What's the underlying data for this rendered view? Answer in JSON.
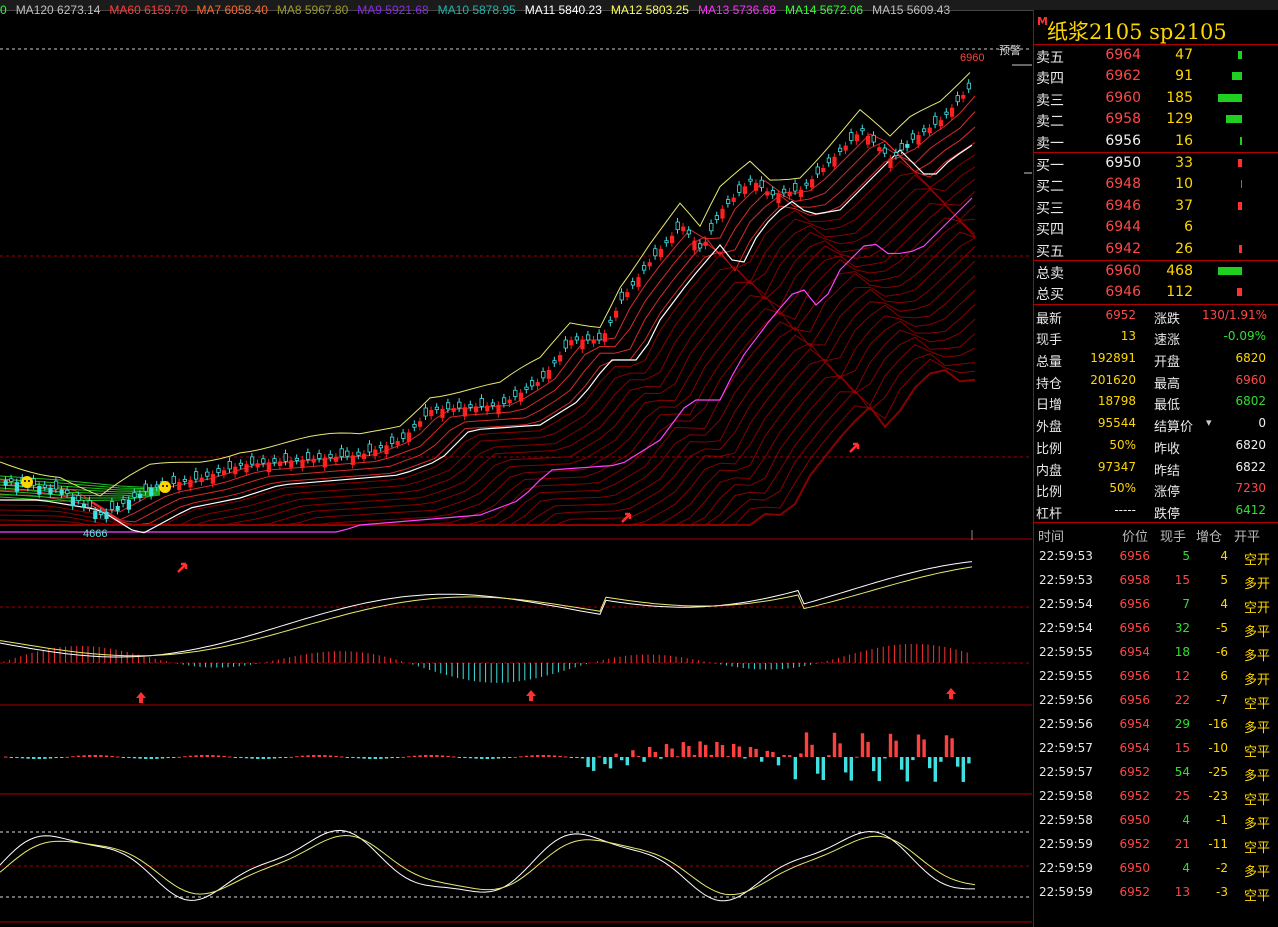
{
  "ma_legend": [
    {
      "label": "0",
      "color": "#2cff2c"
    },
    {
      "label": "MA120 6273.14",
      "color": "#bfbfbf"
    },
    {
      "label": "MA60 6159.70",
      "color": "#ff3b3b"
    },
    {
      "label": "MA7 6058.40",
      "color": "#ff6a2a"
    },
    {
      "label": "MA8 5967.80",
      "color": "#9b9b2a"
    },
    {
      "label": "MA9 5921.68",
      "color": "#8a2be2"
    },
    {
      "label": "MA10 5878.95",
      "color": "#20b2aa"
    },
    {
      "label": "MA11 5840.23",
      "color": "#ffffff"
    },
    {
      "label": "MA12 5803.25",
      "color": "#ffff55"
    },
    {
      "label": "MA13 5736.68",
      "color": "#ff2cff"
    },
    {
      "label": "MA14 5672.06",
      "color": "#2cff2c"
    },
    {
      "label": "MA15 5609.43",
      "color": "#bfbfbf"
    }
  ],
  "chart": {
    "high_label": "6960",
    "low_label": "4666",
    "warn_label": "预警"
  },
  "panel": {
    "m_mark": "M",
    "title": "纸浆2105  sp2105",
    "asks": [
      {
        "label": "卖五",
        "price": "6964",
        "vol": "47",
        "bar": 4
      },
      {
        "label": "卖四",
        "price": "6962",
        "vol": "91",
        "bar": 10
      },
      {
        "label": "卖三",
        "price": "6960",
        "vol": "185",
        "bar": 24
      },
      {
        "label": "卖二",
        "price": "6958",
        "vol": "129",
        "bar": 16
      },
      {
        "label": "卖一",
        "price": "6956",
        "vol": "16",
        "bar": 2
      }
    ],
    "bids": [
      {
        "label": "买一",
        "price": "6950",
        "vol": "33",
        "bar": 4
      },
      {
        "label": "买二",
        "price": "6948",
        "vol": "10",
        "bar": 1
      },
      {
        "label": "买三",
        "price": "6946",
        "vol": "37",
        "bar": 4
      },
      {
        "label": "买四",
        "price": "6944",
        "vol": "6",
        "bar": 0
      },
      {
        "label": "买五",
        "price": "6942",
        "vol": "26",
        "bar": 3
      }
    ],
    "totals": [
      {
        "label": "总卖",
        "price": "6960",
        "vol": "468",
        "bar": 24,
        "color": "green"
      },
      {
        "label": "总买",
        "price": "6946",
        "vol": "112",
        "bar": 5,
        "color": "red"
      }
    ],
    "stats": [
      {
        "l1": "最新",
        "v1": "6952",
        "c1": "red",
        "l2": "涨跌",
        "v2": "130/1.91%",
        "c2": "red"
      },
      {
        "l1": "现手",
        "v1": "13",
        "c1": "yellow",
        "l2": "速涨",
        "v2": "-0.09%",
        "c2": "green"
      },
      {
        "l1": "总量",
        "v1": "192891",
        "c1": "yellow",
        "l2": "开盘",
        "v2": "6820",
        "c2": "yellow"
      },
      {
        "l1": "持仓",
        "v1": "201620",
        "c1": "yellow",
        "l2": "最高",
        "v2": "6960",
        "c2": "red"
      },
      {
        "l1": "日增",
        "v1": "18798",
        "c1": "yellow",
        "l2": "最低",
        "v2": "6802",
        "c2": "green"
      },
      {
        "l1": "外盘",
        "v1": "95544",
        "c1": "yellow",
        "l2": "结算价",
        "v2": "0",
        "c2": "white"
      },
      {
        "l1": "比例",
        "v1": "50%",
        "c1": "yellow",
        "l2": "昨收",
        "v2": "6820",
        "c2": "white"
      },
      {
        "l1": "内盘",
        "v1": "97347",
        "c1": "yellow",
        "l2": "昨结",
        "v2": "6822",
        "c2": "white"
      },
      {
        "l1": "比例",
        "v1": "50%",
        "c1": "yellow",
        "l2": "涨停",
        "v2": "7230",
        "c2": "red"
      },
      {
        "l1": "杠杆",
        "v1": "-----",
        "c1": "white",
        "l2": "跌停",
        "v2": "6412",
        "c2": "green"
      }
    ],
    "ticks_header": {
      "time": "时间",
      "price": "价位",
      "vol": "现手",
      "oi": "增仓",
      "type": "开平"
    },
    "ticks": [
      {
        "t": "22:59:53",
        "p": "6956",
        "v": "5",
        "vc": "green",
        "o": "4",
        "oc": "yellow",
        "ty": "空开"
      },
      {
        "t": "22:59:53",
        "p": "6958",
        "v": "15",
        "vc": "red",
        "o": "5",
        "oc": "yellow",
        "ty": "多开"
      },
      {
        "t": "22:59:54",
        "p": "6956",
        "v": "7",
        "vc": "green",
        "o": "4",
        "oc": "yellow",
        "ty": "空开"
      },
      {
        "t": "22:59:54",
        "p": "6956",
        "v": "32",
        "vc": "green",
        "o": "-5",
        "oc": "yellow",
        "ty": "多平"
      },
      {
        "t": "22:59:55",
        "p": "6954",
        "v": "18",
        "vc": "green",
        "o": "-6",
        "oc": "yellow",
        "ty": "多平"
      },
      {
        "t": "22:59:55",
        "p": "6956",
        "v": "12",
        "vc": "red",
        "o": "6",
        "oc": "yellow",
        "ty": "多开"
      },
      {
        "t": "22:59:56",
        "p": "6956",
        "v": "22",
        "vc": "red",
        "o": "-7",
        "oc": "yellow",
        "ty": "空平"
      },
      {
        "t": "22:59:56",
        "p": "6954",
        "v": "29",
        "vc": "green",
        "o": "-16",
        "oc": "yellow",
        "ty": "多平"
      },
      {
        "t": "22:59:57",
        "p": "6954",
        "v": "15",
        "vc": "red",
        "o": "-10",
        "oc": "yellow",
        "ty": "空平"
      },
      {
        "t": "22:59:57",
        "p": "6952",
        "v": "54",
        "vc": "green",
        "o": "-25",
        "oc": "yellow",
        "ty": "多平"
      },
      {
        "t": "22:59:58",
        "p": "6952",
        "v": "25",
        "vc": "red",
        "o": "-23",
        "oc": "yellow",
        "ty": "空平"
      },
      {
        "t": "22:59:58",
        "p": "6950",
        "v": "4",
        "vc": "green",
        "o": "-1",
        "oc": "yellow",
        "ty": "多平"
      },
      {
        "t": "22:59:59",
        "p": "6952",
        "v": "21",
        "vc": "red",
        "o": "-11",
        "oc": "yellow",
        "ty": "空平"
      },
      {
        "t": "22:59:59",
        "p": "6950",
        "v": "4",
        "vc": "green",
        "o": "-2",
        "oc": "yellow",
        "ty": "多平"
      },
      {
        "t": "22:59:59",
        "p": "6952",
        "v": "13",
        "vc": "red",
        "o": "-3",
        "oc": "yellow",
        "ty": "空平"
      }
    ]
  }
}
